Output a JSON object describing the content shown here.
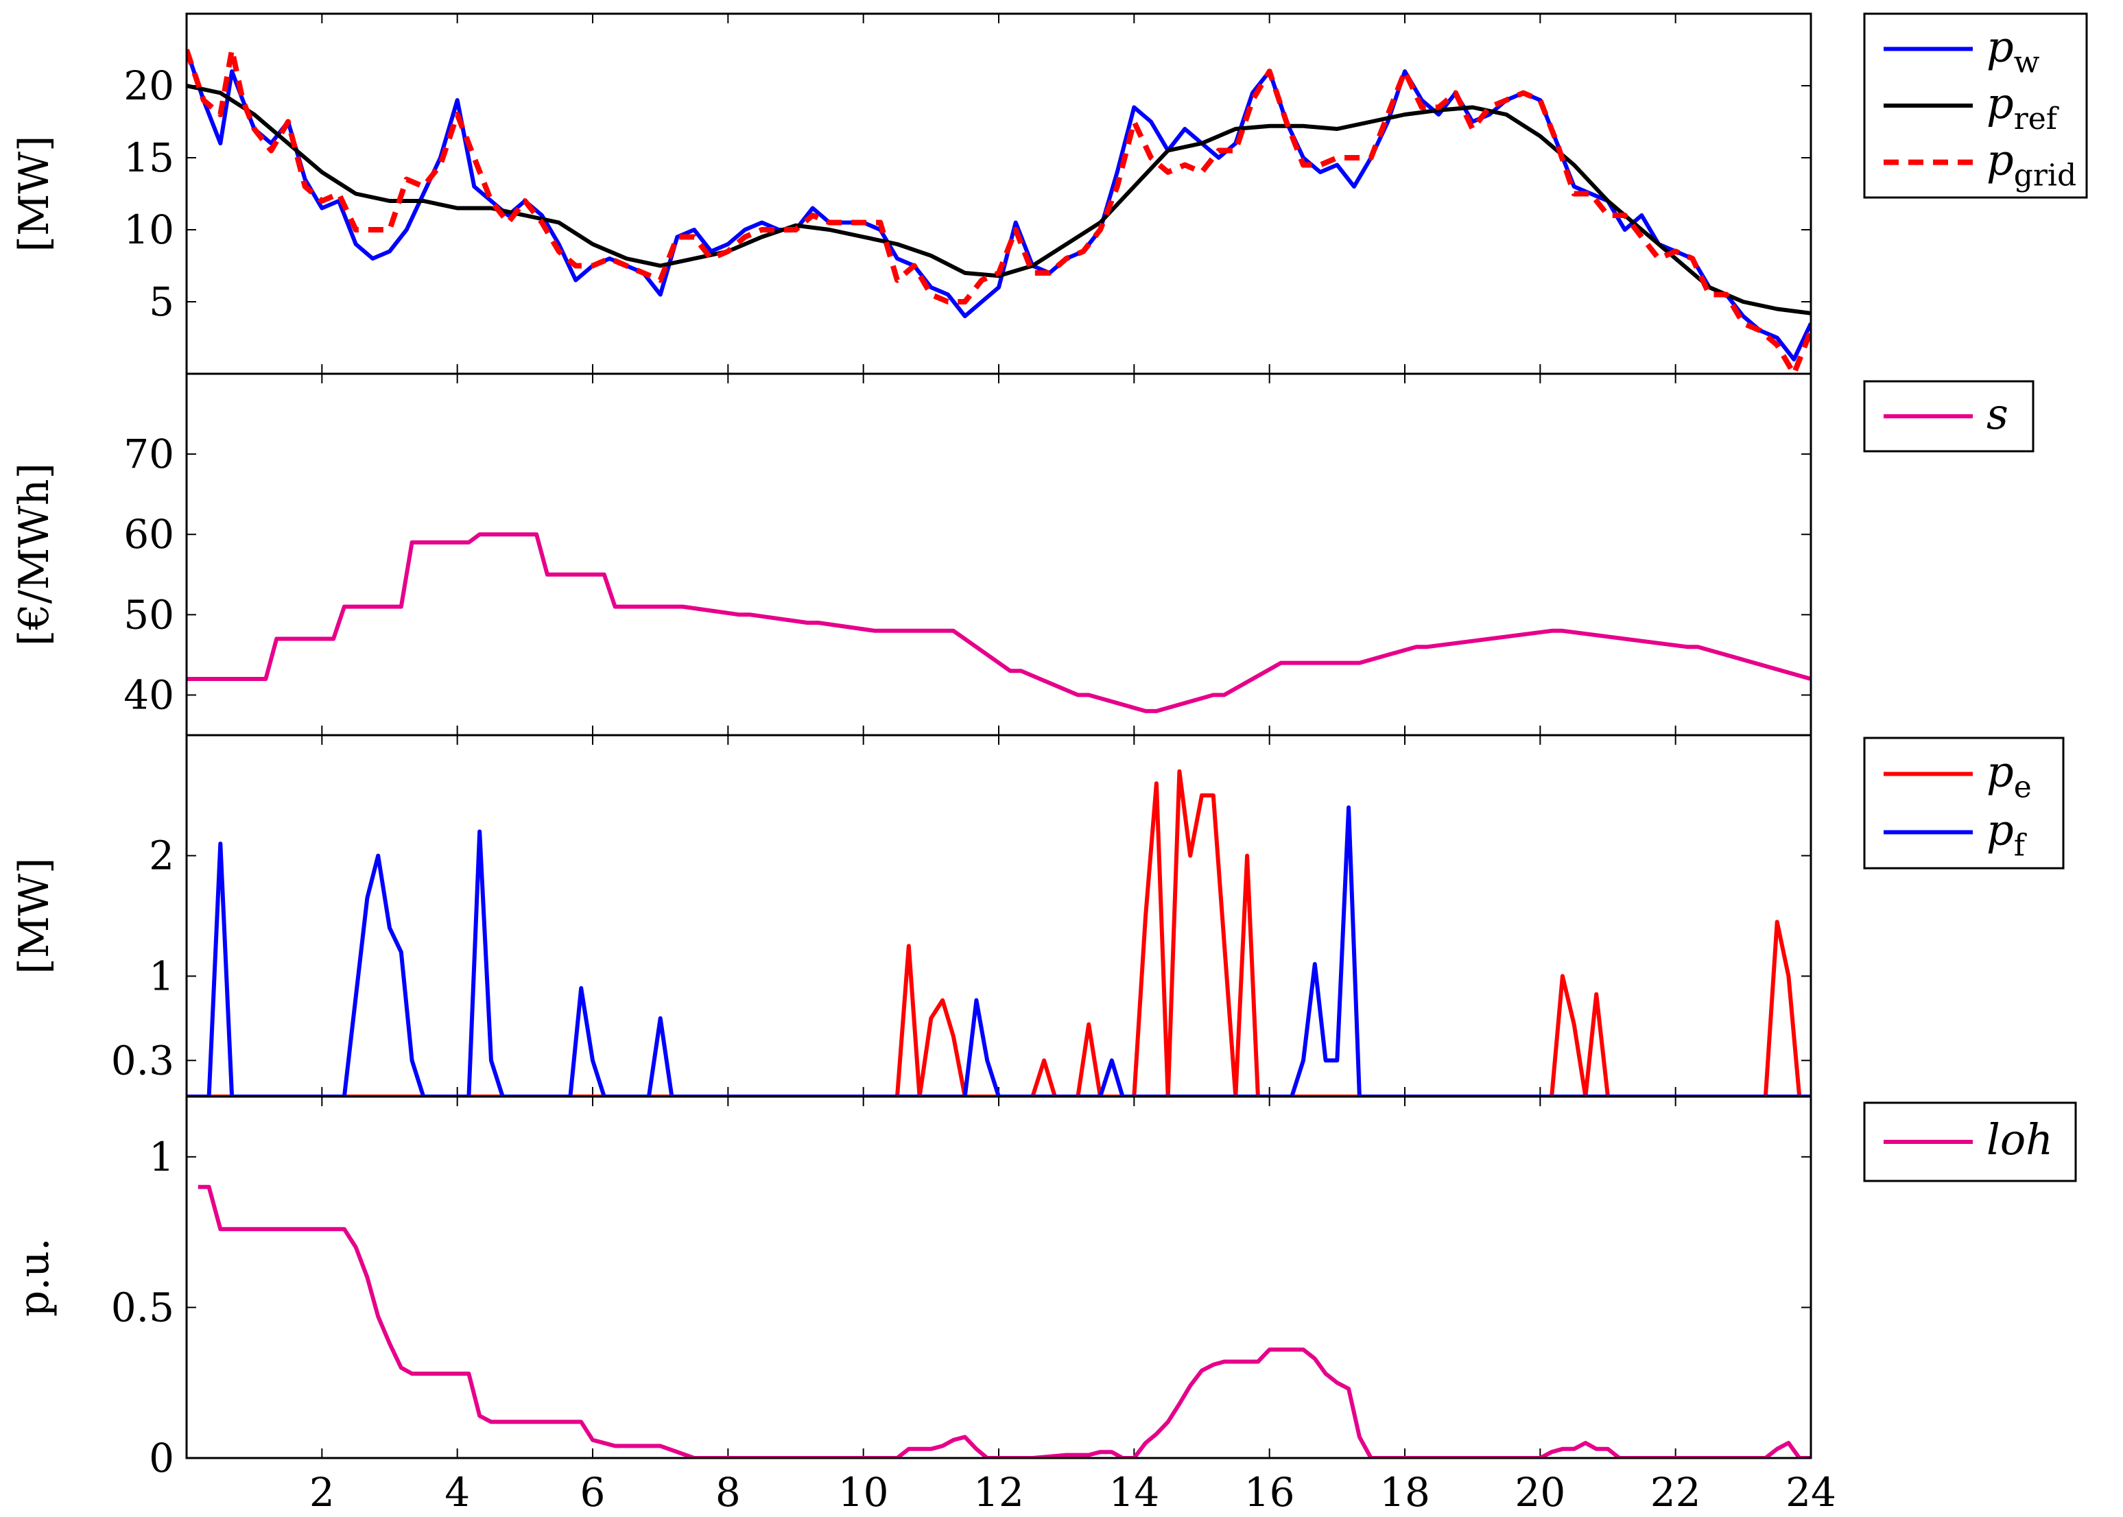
{
  "chart_data": [
    {
      "type": "line",
      "ylabel": "[MW]",
      "xlim": [
        0,
        24
      ],
      "ylim": [
        0,
        25
      ],
      "yticks": [
        5,
        10,
        15,
        20
      ],
      "xticks": [
        2,
        4,
        6,
        8,
        10,
        12,
        14,
        16,
        18,
        20,
        22,
        24
      ],
      "show_xtick_labels": false,
      "legend_position": "outside-right-top",
      "series": [
        {
          "name": "p",
          "sub": "w",
          "color": "#0000ff",
          "dash": "none",
          "x": [
            0,
            0.25,
            0.5,
            0.67,
            0.83,
            1,
            1.25,
            1.5,
            1.75,
            2,
            2.25,
            2.5,
            2.75,
            3,
            3.25,
            3.5,
            3.75,
            4,
            4.25,
            4.5,
            4.75,
            5,
            5.25,
            5.5,
            5.75,
            6,
            6.25,
            6.5,
            6.75,
            7,
            7.25,
            7.5,
            7.75,
            8,
            8.25,
            8.5,
            8.75,
            9,
            9.25,
            9.5,
            9.75,
            10,
            10.25,
            10.5,
            10.75,
            11,
            11.25,
            11.5,
            11.75,
            12,
            12.25,
            12.5,
            12.75,
            13,
            13.25,
            13.5,
            13.75,
            14,
            14.25,
            14.5,
            14.75,
            15,
            15.25,
            15.5,
            15.75,
            16,
            16.25,
            16.5,
            16.75,
            17,
            17.25,
            17.5,
            17.75,
            18,
            18.25,
            18.5,
            18.75,
            19,
            19.25,
            19.5,
            19.75,
            20,
            20.25,
            20.5,
            20.75,
            21,
            21.25,
            21.5,
            21.75,
            22,
            22.25,
            22.5,
            22.75,
            23,
            23.25,
            23.5,
            23.75,
            24
          ],
          "y": [
            22.5,
            19,
            16,
            21,
            19,
            17,
            16,
            17.5,
            13.5,
            11.5,
            12,
            9,
            8,
            8.5,
            10,
            12.5,
            15,
            19,
            13,
            12,
            11,
            12,
            11,
            9,
            6.5,
            7.5,
            8,
            7.5,
            7,
            5.5,
            9.5,
            10,
            8.5,
            9,
            10,
            10.5,
            10,
            10,
            11.5,
            10.5,
            10.5,
            10.5,
            10,
            8,
            7.5,
            6,
            5.5,
            4,
            5,
            6,
            10.5,
            7.5,
            7,
            8,
            8.5,
            10,
            14,
            18.5,
            17.5,
            15.5,
            17,
            16,
            15,
            16,
            19.5,
            21,
            17.5,
            15,
            14,
            14.5,
            13,
            15,
            17.5,
            21,
            19,
            18,
            19.5,
            17.5,
            18,
            19,
            19.5,
            19,
            16,
            13,
            12.5,
            12,
            10,
            11,
            9,
            8.5,
            8,
            6,
            5.5,
            4,
            3,
            2.5,
            1,
            3.5
          ]
        },
        {
          "name": "p",
          "sub": "ref",
          "color": "#000000",
          "dash": "none",
          "x": [
            0,
            0.5,
            1,
            1.5,
            2,
            2.5,
            3,
            3.5,
            4,
            4.5,
            5,
            5.5,
            6,
            6.5,
            7,
            7.5,
            8,
            8.5,
            9,
            9.5,
            10,
            10.5,
            11,
            11.5,
            12,
            12.5,
            13,
            13.5,
            14,
            14.5,
            15,
            15.5,
            16,
            16.5,
            17,
            17.5,
            18,
            18.5,
            19,
            19.5,
            20,
            20.5,
            21,
            21.5,
            22,
            22.5,
            23,
            23.5,
            24
          ],
          "y": [
            20,
            19.5,
            18,
            16,
            14,
            12.5,
            12,
            12,
            11.5,
            11.5,
            11,
            10.5,
            9,
            8,
            7.5,
            8,
            8.5,
            9.5,
            10.3,
            10,
            9.5,
            9,
            8.2,
            7,
            6.8,
            7.5,
            9,
            10.5,
            13,
            15.5,
            16,
            17,
            17.2,
            17.2,
            17,
            17.5,
            18,
            18.3,
            18.5,
            18,
            16.5,
            14.5,
            12,
            10,
            8,
            6,
            5,
            4.5,
            4.2
          ]
        },
        {
          "name": "p",
          "sub": "grid",
          "color": "#ff0000",
          "dash": "22,14",
          "x": [
            0,
            0.25,
            0.5,
            0.67,
            0.83,
            1,
            1.25,
            1.5,
            1.75,
            2,
            2.25,
            2.5,
            2.75,
            3,
            3.25,
            3.5,
            3.75,
            4,
            4.25,
            4.5,
            4.75,
            5,
            5.25,
            5.5,
            5.75,
            6,
            6.25,
            6.5,
            6.75,
            7,
            7.25,
            7.5,
            7.75,
            8,
            8.25,
            8.5,
            8.75,
            9,
            9.25,
            9.5,
            9.75,
            10,
            10.25,
            10.5,
            10.75,
            11,
            11.25,
            11.5,
            11.75,
            12,
            12.25,
            12.5,
            12.75,
            13,
            13.25,
            13.5,
            13.75,
            14,
            14.25,
            14.5,
            14.75,
            15,
            15.25,
            15.5,
            15.75,
            16,
            16.25,
            16.5,
            16.75,
            17,
            17.25,
            17.5,
            17.75,
            18,
            18.25,
            18.5,
            18.75,
            19,
            19.25,
            19.5,
            19.75,
            20,
            20.25,
            20.5,
            20.75,
            21,
            21.25,
            21.5,
            21.75,
            22,
            22.25,
            22.5,
            22.75,
            23,
            23.25,
            23.5,
            23.75,
            24
          ],
          "y": [
            22.5,
            19,
            18,
            22.5,
            19,
            17,
            15.5,
            17.5,
            13,
            12,
            12.5,
            10,
            10,
            10,
            13.5,
            13,
            14.5,
            18,
            15,
            12,
            10.5,
            12,
            10.5,
            8.5,
            7.5,
            7.5,
            8,
            7.5,
            7,
            6.5,
            9.5,
            9.5,
            8,
            8.5,
            9.5,
            10,
            10,
            10,
            11,
            10.5,
            10.5,
            10.5,
            10.5,
            6.5,
            7.5,
            5.5,
            5,
            5,
            6.5,
            7,
            10,
            7,
            7,
            8,
            8.5,
            10,
            13,
            17.5,
            15,
            14,
            14.5,
            14,
            15.5,
            15.5,
            19,
            21,
            17.5,
            14.5,
            14.5,
            15,
            15,
            15,
            18,
            21,
            18.5,
            18.5,
            19.5,
            17,
            18.5,
            19,
            19.5,
            19,
            16,
            12.5,
            12.5,
            11,
            11,
            9.5,
            8,
            8.5,
            8,
            5.5,
            5.5,
            3.5,
            3,
            2,
            0,
            3
          ]
        }
      ]
    },
    {
      "type": "line",
      "ylabel": "[€/MWh]",
      "xlim": [
        0,
        24
      ],
      "ylim": [
        35,
        80
      ],
      "yticks": [
        40,
        50,
        60,
        70
      ],
      "xticks": [
        2,
        4,
        6,
        8,
        10,
        12,
        14,
        16,
        18,
        20,
        22,
        24
      ],
      "show_xtick_labels": false,
      "legend_position": "outside-right-top",
      "series": [
        {
          "name": "s",
          "sub": "",
          "color": "#e6008a",
          "dash": "none",
          "x": [
            0,
            1.17,
            1.33,
            2.17,
            2.33,
            3.17,
            3.33,
            4.17,
            4.33,
            5.17,
            5.33,
            6.17,
            6.33,
            7.17,
            7.33,
            8.17,
            8.33,
            9.17,
            9.33,
            10.17,
            10.33,
            11.17,
            11.33,
            12.17,
            12.33,
            13.17,
            13.33,
            14.17,
            14.33,
            15.17,
            15.33,
            16.17,
            16.33,
            17.17,
            17.33,
            18.17,
            18.33,
            20.17,
            20.33,
            22.17,
            22.33,
            24
          ],
          "y": [
            42,
            42,
            47,
            47,
            51,
            51,
            59,
            59,
            60,
            60,
            55,
            55,
            51,
            51,
            51,
            50,
            50,
            49,
            49,
            48,
            48,
            48,
            48,
            43,
            43,
            40,
            40,
            38,
            38,
            40,
            40,
            44,
            44,
            44,
            44,
            46,
            46,
            48,
            48,
            46,
            46,
            42
          ]
        }
      ]
    },
    {
      "type": "line",
      "ylabel": "[MW]",
      "xlim": [
        0,
        24
      ],
      "ylim": [
        0,
        3
      ],
      "yticks": [
        0.3,
        1,
        2
      ],
      "xticks": [
        2,
        4,
        6,
        8,
        10,
        12,
        14,
        16,
        18,
        20,
        22,
        24
      ],
      "show_xtick_labels": false,
      "legend_position": "outside-right-top",
      "series": [
        {
          "name": "p",
          "sub": "e",
          "color": "#ff0000",
          "dash": "none",
          "x": [
            0,
            10.5,
            10.67,
            10.83,
            11,
            11.17,
            11.33,
            11.5,
            11.67,
            12.5,
            12.67,
            12.83,
            13.17,
            13.33,
            13.5,
            14,
            14.17,
            14.33,
            14.5,
            14.67,
            14.83,
            15,
            15.17,
            15.5,
            15.67,
            15.83,
            16,
            16.17,
            20.17,
            20.33,
            20.5,
            20.67,
            20.83,
            21,
            23.33,
            23.5,
            23.67,
            23.83,
            24
          ],
          "y": [
            0,
            0,
            1.25,
            0,
            0.65,
            0.8,
            0.5,
            0,
            0,
            0,
            0.3,
            0,
            0,
            0.6,
            0,
            0,
            1.5,
            2.6,
            0,
            2.7,
            2,
            2.5,
            2.5,
            0,
            2,
            0,
            0,
            0,
            0,
            1,
            0.6,
            0,
            0.85,
            0,
            0,
            1.45,
            1,
            0,
            0
          ]
        },
        {
          "name": "p",
          "sub": "f",
          "color": "#0000ff",
          "dash": "none",
          "x": [
            0,
            0.33,
            0.5,
            0.67,
            2.33,
            2.67,
            2.83,
            3,
            3.17,
            3.33,
            3.5,
            4.17,
            4.33,
            4.5,
            4.67,
            5.67,
            5.83,
            6,
            6.17,
            6.83,
            7,
            7.17,
            11.33,
            11.5,
            11.67,
            11.83,
            12,
            13.5,
            13.67,
            13.83,
            14,
            16.33,
            16.5,
            16.67,
            16.83,
            17,
            17.17,
            17.33,
            24
          ],
          "y": [
            0,
            0,
            2.1,
            0,
            0,
            1.65,
            2,
            1.4,
            1.2,
            0.3,
            0,
            0,
            2.2,
            0.3,
            0,
            0,
            0.9,
            0.3,
            0,
            0,
            0.65,
            0,
            0,
            0,
            0.8,
            0.3,
            0,
            0,
            0.3,
            0,
            0,
            0,
            0.3,
            1.1,
            0.3,
            0.3,
            2.4,
            0,
            0
          ]
        }
      ]
    },
    {
      "type": "line",
      "ylabel": "p.u.",
      "xlim": [
        0,
        24
      ],
      "ylim": [
        0,
        1.2
      ],
      "yticks": [
        0,
        0.5,
        1
      ],
      "xticks": [
        2,
        4,
        6,
        8,
        10,
        12,
        14,
        16,
        18,
        20,
        22,
        24
      ],
      "show_xtick_labels": true,
      "legend_position": "outside-right-top",
      "series": [
        {
          "name": "loh",
          "sub": "",
          "color": "#e6008a",
          "dash": "none",
          "x": [
            0.17,
            0.33,
            0.5,
            1,
            1.5,
            2,
            2.33,
            2.5,
            2.67,
            2.83,
            3,
            3.17,
            3.33,
            3.5,
            3.67,
            4,
            4.17,
            4.33,
            4.5,
            5,
            5.5,
            5.83,
            6,
            6.33,
            6.67,
            6.83,
            7,
            7.5,
            10.33,
            10.5,
            10.67,
            11,
            11.17,
            11.33,
            11.5,
            11.67,
            11.83,
            12,
            12.5,
            13,
            13.33,
            13.5,
            13.67,
            13.83,
            14,
            14.17,
            14.33,
            14.5,
            14.67,
            14.83,
            15,
            15.17,
            15.33,
            15.83,
            16,
            16.17,
            16.5,
            16.67,
            16.83,
            17,
            17.17,
            17.33,
            17.5,
            17.67,
            20,
            20.17,
            20.33,
            20.5,
            20.67,
            20.83,
            21,
            21.17,
            21.33,
            21.5,
            23.33,
            23.5,
            23.67,
            23.83,
            24
          ],
          "y": [
            0.9,
            0.9,
            0.76,
            0.76,
            0.76,
            0.76,
            0.76,
            0.7,
            0.6,
            0.47,
            0.38,
            0.3,
            0.28,
            0.28,
            0.28,
            0.28,
            0.28,
            0.14,
            0.12,
            0.12,
            0.12,
            0.12,
            0.06,
            0.04,
            0.04,
            0.04,
            0.04,
            0,
            0,
            0,
            0.03,
            0.03,
            0.04,
            0.06,
            0.07,
            0.03,
            0,
            0,
            0,
            0.01,
            0.01,
            0.02,
            0.02,
            0,
            0,
            0.05,
            0.08,
            0.12,
            0.18,
            0.24,
            0.29,
            0.31,
            0.32,
            0.32,
            0.36,
            0.36,
            0.36,
            0.33,
            0.28,
            0.25,
            0.23,
            0.07,
            0,
            0,
            0,
            0.02,
            0.03,
            0.03,
            0.05,
            0.03,
            0.03,
            0,
            0,
            0,
            0,
            0.03,
            0.05,
            0,
            0
          ]
        }
      ]
    }
  ]
}
